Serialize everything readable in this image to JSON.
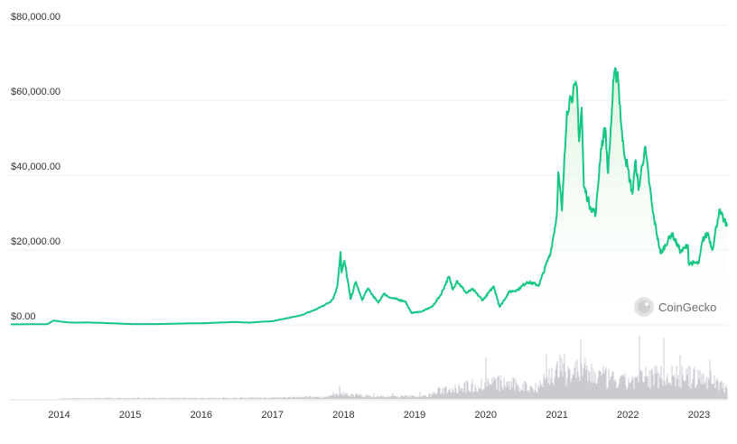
{
  "chart_data": {
    "type": "area",
    "title": "",
    "xlabel": "",
    "ylabel": "",
    "y_axis": {
      "min": 0,
      "max": 80000,
      "ticks": [
        {
          "value": 0,
          "label": "$0.00"
        },
        {
          "value": 20000,
          "label": "$20,000.00"
        },
        {
          "value": 40000,
          "label": "$40,000.00"
        },
        {
          "value": 60000,
          "label": "$60,000.00"
        },
        {
          "value": 80000,
          "label": "$80,000.00"
        }
      ]
    },
    "x_axis": {
      "range": [
        "2013-04-28",
        "2023-05-25"
      ],
      "ticks": [
        {
          "date": "2014-01-01",
          "label": "2014"
        },
        {
          "date": "2015-01-01",
          "label": "2015"
        },
        {
          "date": "2016-01-01",
          "label": "2016"
        },
        {
          "date": "2017-01-01",
          "label": "2017"
        },
        {
          "date": "2018-01-01",
          "label": "2018"
        },
        {
          "date": "2019-01-01",
          "label": "2019"
        },
        {
          "date": "2020-01-01",
          "label": "2020"
        },
        {
          "date": "2021-01-01",
          "label": "2021"
        },
        {
          "date": "2022-01-01",
          "label": "2022"
        },
        {
          "date": "2023-01-01",
          "label": "2023"
        }
      ]
    },
    "grid": true,
    "legend": "none",
    "colors": {
      "line": "#16c784",
      "area_top": "#d9f3d9",
      "volume": "#c9cbd1"
    },
    "price": [
      [
        "2013-04-28",
        135
      ],
      [
        "2013-11-01",
        200
      ],
      [
        "2013-12-04",
        1150
      ],
      [
        "2014-01-15",
        850
      ],
      [
        "2014-03-01",
        600
      ],
      [
        "2014-06-01",
        640
      ],
      [
        "2014-09-01",
        480
      ],
      [
        "2015-01-14",
        200
      ],
      [
        "2015-06-01",
        230
      ],
      [
        "2015-11-04",
        400
      ],
      [
        "2016-01-01",
        430
      ],
      [
        "2016-06-16",
        760
      ],
      [
        "2016-09-01",
        600
      ],
      [
        "2017-01-01",
        1000
      ],
      [
        "2017-05-25",
        2500
      ],
      [
        "2017-08-15",
        4200
      ],
      [
        "2017-10-20",
        6000
      ],
      [
        "2017-11-10",
        7200
      ],
      [
        "2017-11-29",
        10000
      ],
      [
        "2017-12-17",
        19500
      ],
      [
        "2017-12-22",
        14000
      ],
      [
        "2018-01-06",
        17100
      ],
      [
        "2018-02-06",
        6900
      ],
      [
        "2018-03-05",
        11500
      ],
      [
        "2018-04-06",
        6600
      ],
      [
        "2018-05-05",
        9700
      ],
      [
        "2018-06-28",
        5900
      ],
      [
        "2018-07-26",
        8300
      ],
      [
        "2018-09-01",
        7200
      ],
      [
        "2018-11-14",
        6300
      ],
      [
        "2018-12-15",
        3200
      ],
      [
        "2019-02-08",
        3600
      ],
      [
        "2019-04-02",
        4900
      ],
      [
        "2019-05-15",
        8000
      ],
      [
        "2019-06-26",
        12900
      ],
      [
        "2019-07-16",
        9400
      ],
      [
        "2019-08-06",
        11800
      ],
      [
        "2019-09-24",
        8500
      ],
      [
        "2019-10-26",
        9500
      ],
      [
        "2019-12-17",
        6600
      ],
      [
        "2020-02-12",
        10300
      ],
      [
        "2020-03-13",
        4800
      ],
      [
        "2020-05-01",
        8800
      ],
      [
        "2020-06-15",
        9400
      ],
      [
        "2020-08-01",
        11500
      ],
      [
        "2020-10-01",
        10600
      ],
      [
        "2020-11-30",
        19500
      ],
      [
        "2020-12-31",
        29000
      ],
      [
        "2021-01-08",
        40800
      ],
      [
        "2021-01-27",
        30500
      ],
      [
        "2021-02-21",
        57000
      ],
      [
        "2021-03-13",
        61000
      ],
      [
        "2021-04-14",
        63500
      ],
      [
        "2021-04-25",
        49000
      ],
      [
        "2021-05-08",
        58000
      ],
      [
        "2021-05-19",
        37000
      ],
      [
        "2021-06-22",
        31500
      ],
      [
        "2021-07-20",
        29800
      ],
      [
        "2021-08-15",
        47000
      ],
      [
        "2021-09-06",
        52600
      ],
      [
        "2021-09-21",
        40500
      ],
      [
        "2021-10-20",
        65900
      ],
      [
        "2021-11-09",
        67500
      ],
      [
        "2021-12-04",
        49000
      ],
      [
        "2022-01-24",
        35000
      ],
      [
        "2022-02-10",
        44000
      ],
      [
        "2022-02-24",
        36000
      ],
      [
        "2022-03-29",
        47500
      ],
      [
        "2022-05-09",
        30000
      ],
      [
        "2022-06-18",
        19000
      ],
      [
        "2022-08-14",
        24400
      ],
      [
        "2022-09-30",
        19500
      ],
      [
        "2022-11-05",
        21300
      ],
      [
        "2022-11-09",
        16500
      ],
      [
        "2022-12-31",
        16500
      ],
      [
        "2023-01-20",
        22700
      ],
      [
        "2023-02-16",
        24500
      ],
      [
        "2023-03-10",
        20000
      ],
      [
        "2023-04-14",
        30400
      ],
      [
        "2023-05-25",
        26300
      ]
    ],
    "volume_note": "relative trading volume bars, no printed values"
  },
  "watermark": {
    "text": "CoinGecko",
    "icon": "gecko-logo-icon"
  }
}
